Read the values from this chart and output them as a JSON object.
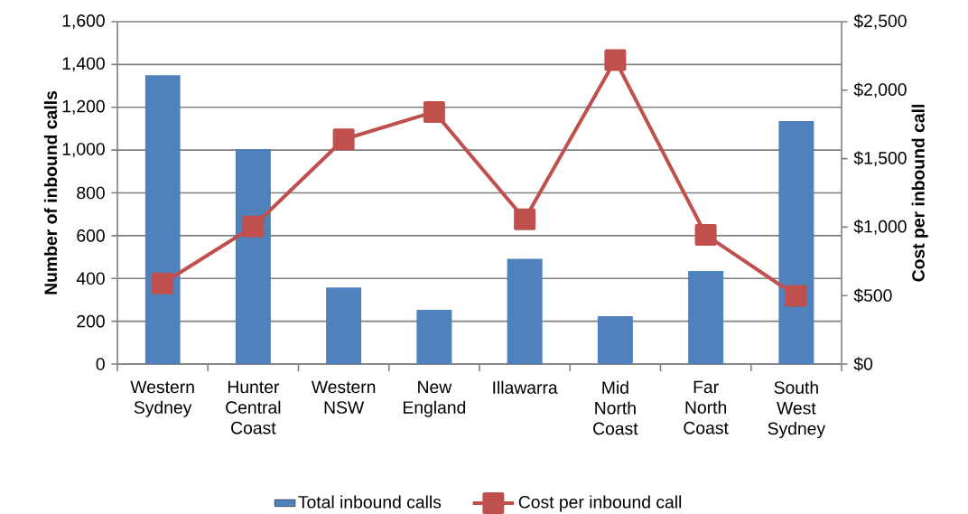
{
  "chart_data": {
    "type": "bar",
    "categories": [
      "Western Sydney",
      "Hunter Central Coast",
      "Western NSW",
      "New England",
      "Illawarra",
      "Mid North Coast",
      "Far North Coast",
      "South West Sydney"
    ],
    "series": [
      {
        "name": "Total inbound calls",
        "type": "bar",
        "color": "#4f81bd",
        "values": [
          1350,
          1005,
          358,
          253,
          492,
          224,
          435,
          1136
        ]
      },
      {
        "name": "Cost per inbound call",
        "type": "line",
        "axis": "y2",
        "marker": "square",
        "color": "#c0504d",
        "values": [
          589,
          1004,
          1641,
          1841,
          1057,
          2219,
          943,
          498
        ]
      }
    ],
    "ylabel": "Number of inbound calls",
    "y2label": "Cost per inbound call",
    "ylim": [
      0,
      1600
    ],
    "yticks": [
      {
        "value": 0,
        "label": "0"
      },
      {
        "value": 200,
        "label": "200"
      },
      {
        "value": 400,
        "label": "400"
      },
      {
        "value": 600,
        "label": "600"
      },
      {
        "value": 800,
        "label": "800"
      },
      {
        "value": 1000,
        "label": "1,000"
      },
      {
        "value": 1200,
        "label": "1,200"
      },
      {
        "value": 1400,
        "label": "1,400"
      },
      {
        "value": 1600,
        "label": "1,600"
      }
    ],
    "y2lim": [
      0,
      2500
    ],
    "y2ticks": [
      {
        "value": 0,
        "label": "$0"
      },
      {
        "value": 500,
        "label": "$500"
      },
      {
        "value": 1000,
        "label": "$1,000"
      },
      {
        "value": 1500,
        "label": "$1,500"
      },
      {
        "value": 2000,
        "label": "$2,000"
      },
      {
        "value": 2500,
        "label": "$2,500"
      }
    ],
    "grid": "y",
    "legend": "bottom"
  }
}
